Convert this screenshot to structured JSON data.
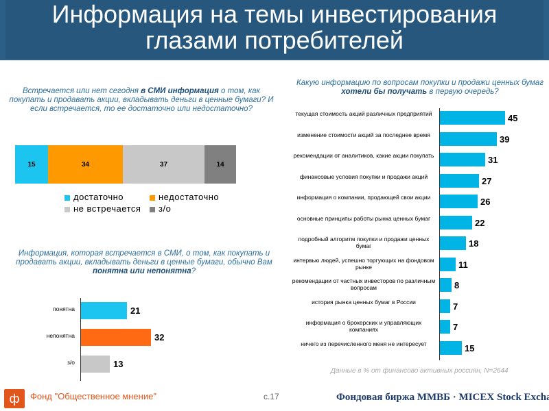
{
  "title": "Информация на темы инвестирования глазами потребителей",
  "q1": {
    "text_a": "Встречается или нет сегодня ",
    "text_b": "в СМИ информация",
    "text_c": " о том, как покупать и продавать акции, вкладывать деньги в ценные бумаги? И если встречается, то ее достаточно или недостаточно?",
    "segments": [
      {
        "label": "достаточно",
        "value": 15,
        "color": "#1cc4f0"
      },
      {
        "label": "недостаточно",
        "value": 34,
        "color": "#ff9900"
      },
      {
        "label": "не встречается",
        "value": 37,
        "color": "#c8c8c8"
      },
      {
        "label": "з/о",
        "value": 14,
        "color": "#808080"
      }
    ]
  },
  "q2": {
    "text_a": "Информация, которая встречается в СМИ, о том, как покупать и продавать акции, вкладывать деньги в ценные бумаги, обычно Вам ",
    "text_b": "понятна или непонятна",
    "text_c": "?"
  },
  "q3": {
    "text_a": "Какую информацию по вопросам покупки и продажи ценных бумаг ",
    "text_b": "хотели бы получать",
    "text_c": " в первую очередь?"
  },
  "chart_data": [
    {
      "type": "bar",
      "orientation": "horizontal-stacked",
      "categories": [
        "достаточно",
        "недостаточно",
        "не встречается",
        "з/о"
      ],
      "values": [
        15,
        34,
        37,
        14
      ],
      "legend": "bottom"
    },
    {
      "type": "bar",
      "orientation": "horizontal",
      "categories": [
        "понятна",
        "непонятна",
        "з/о"
      ],
      "values": [
        21,
        32,
        13
      ],
      "colors": [
        "#1cc4f0",
        "#ff6a13",
        "#c8c8c8"
      ]
    },
    {
      "type": "bar",
      "orientation": "horizontal",
      "categories": [
        "текущая стоимость акций различных предприятий",
        "изменение стоимости акций за последнее время",
        "рекомендации от аналитиков, какие акции покупать",
        "финансовые условия покупки и продажи акций",
        "информация о компании, продающей свои акции",
        "основные принципы работы рынка ценных бумаг",
        "подробный алгоритм покупки и продажи ценных бумаг",
        "интервью людей, успешно торгующих на фондовом рынке",
        "рекомендации от частных инвесторов по различным вопросам",
        "история рынка ценных бумаг в России",
        "информация о брокерских и управляющих компаниях",
        "ничего из перечисленного меня не интересует"
      ],
      "values": [
        45,
        39,
        31,
        27,
        26,
        22,
        18,
        11,
        8,
        7,
        7,
        15
      ],
      "color": "#00b4e6"
    }
  ],
  "note": "Данные в % от финансово активных россиян, N=2644",
  "footer": {
    "org": "Фонд \"Общественное мнение\"",
    "page": "с.17",
    "exchange": "Фондовая биржа ММВБ · MICEX Stock Exchange"
  }
}
